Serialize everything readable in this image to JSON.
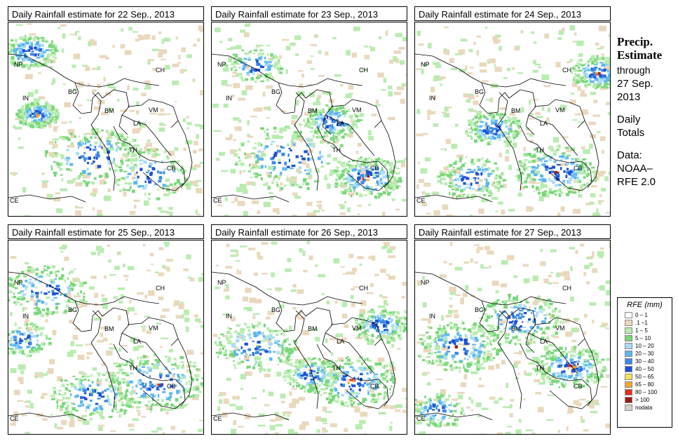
{
  "panels": [
    {
      "title": "Daily Rainfall estimate for  22 Sep., 2013"
    },
    {
      "title": "Daily Rainfall estimate for  23 Sep., 2013"
    },
    {
      "title": "Daily Rainfall estimate for  24 Sep., 2013"
    },
    {
      "title": "Daily Rainfall estimate for  25 Sep., 2013"
    },
    {
      "title": "Daily Rainfall estimate for  26 Sep., 2013"
    },
    {
      "title": "Daily Rainfall estimate for  27 Sep., 2013"
    }
  ],
  "map_labels": {
    "np": "NP",
    "ch": "CH",
    "in": "IN",
    "bg": "BG",
    "bm": "BM",
    "vm": "VM",
    "la": "LA",
    "th": "TH",
    "cb": "CB",
    "ce": "CE"
  },
  "side": {
    "title_line1": "Precip.",
    "title_line2": "Estimate",
    "through": "through",
    "date_line1": "27 Sep.",
    "date_line2": "2013",
    "daily": "Daily",
    "totals": "Totals",
    "data_label": "Data:",
    "source_line1": "NOAA–",
    "source_line2": "RFE 2.0"
  },
  "legend": {
    "title": "RFE (mm)",
    "items": [
      {
        "label": "0 – 1",
        "color": "#ffffff"
      },
      {
        "label": ".1 –1",
        "color": "#ead8bd"
      },
      {
        "label": "1 – 5",
        "color": "#b8ecb0"
      },
      {
        "label": "5 – 10",
        "color": "#78d77a"
      },
      {
        "label": "10 – 20",
        "color": "#a8dcf6"
      },
      {
        "label": "20 – 30",
        "color": "#5bb6f0"
      },
      {
        "label": "30 – 40",
        "color": "#3b8ae6"
      },
      {
        "label": "40 – 50",
        "color": "#1d52d4"
      },
      {
        "label": "50 – 65",
        "color": "#f6e25a"
      },
      {
        "label": "65 – 80",
        "color": "#f5a530"
      },
      {
        "label": "80 – 100",
        "color": "#e0301e"
      },
      {
        "label": "> 100",
        "color": "#9c1a12"
      },
      {
        "label": "nodata",
        "color": "#d4d0c8"
      }
    ]
  }
}
